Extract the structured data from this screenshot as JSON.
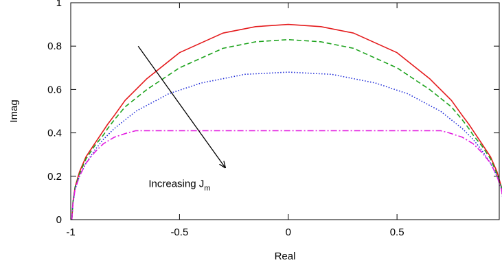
{
  "chart_data": {
    "type": "line",
    "title": "",
    "xlabel": "Real",
    "ylabel": "Imag",
    "xlim": [
      -1,
      0.97
    ],
    "ylim": [
      0,
      1
    ],
    "x_ticks": [
      -1,
      -0.5,
      0,
      0.5
    ],
    "x_tick_labels": [
      "-1",
      "-0.5",
      "0",
      "0.5"
    ],
    "y_ticks": [
      0,
      0.2,
      0.4,
      0.6,
      0.8,
      1
    ],
    "y_tick_labels": [
      "0",
      "0.2",
      "0.4",
      "0.6",
      "0.8",
      "1"
    ],
    "grid": false,
    "legend": "none",
    "series": [
      {
        "color": "#e41a1c",
        "style": "solid",
        "points": [
          [
            -0.995,
            0.0
          ],
          [
            -0.99,
            0.08
          ],
          [
            -0.98,
            0.15
          ],
          [
            -0.96,
            0.22
          ],
          [
            -0.93,
            0.29
          ],
          [
            -0.89,
            0.35
          ],
          [
            -0.85,
            0.41
          ],
          [
            -0.83,
            0.44
          ],
          [
            -0.8,
            0.48
          ],
          [
            -0.75,
            0.55
          ],
          [
            -0.65,
            0.65
          ],
          [
            -0.5,
            0.77
          ],
          [
            -0.3,
            0.86
          ],
          [
            -0.15,
            0.89
          ],
          [
            0.0,
            0.9
          ],
          [
            0.15,
            0.89
          ],
          [
            0.3,
            0.86
          ],
          [
            0.5,
            0.77
          ],
          [
            0.65,
            0.65
          ],
          [
            0.75,
            0.55
          ],
          [
            0.8,
            0.48
          ],
          [
            0.83,
            0.44
          ],
          [
            0.85,
            0.41
          ],
          [
            0.89,
            0.35
          ],
          [
            0.93,
            0.29
          ],
          [
            0.96,
            0.22
          ],
          [
            0.98,
            0.15
          ],
          [
            0.99,
            0.08
          ],
          [
            0.995,
            0.0
          ]
        ]
      },
      {
        "color": "#1da31d",
        "style": "dashed",
        "points": [
          [
            -0.995,
            0.0
          ],
          [
            -0.99,
            0.08
          ],
          [
            -0.98,
            0.15
          ],
          [
            -0.96,
            0.21
          ],
          [
            -0.93,
            0.28
          ],
          [
            -0.89,
            0.34
          ],
          [
            -0.85,
            0.39
          ],
          [
            -0.83,
            0.42
          ],
          [
            -0.8,
            0.46
          ],
          [
            -0.75,
            0.52
          ],
          [
            -0.65,
            0.6
          ],
          [
            -0.5,
            0.7
          ],
          [
            -0.3,
            0.79
          ],
          [
            -0.15,
            0.82
          ],
          [
            0.0,
            0.83
          ],
          [
            0.15,
            0.82
          ],
          [
            0.3,
            0.79
          ],
          [
            0.5,
            0.7
          ],
          [
            0.65,
            0.6
          ],
          [
            0.75,
            0.52
          ],
          [
            0.8,
            0.46
          ],
          [
            0.83,
            0.42
          ],
          [
            0.85,
            0.39
          ],
          [
            0.89,
            0.34
          ],
          [
            0.93,
            0.28
          ],
          [
            0.96,
            0.21
          ],
          [
            0.98,
            0.15
          ],
          [
            0.99,
            0.08
          ],
          [
            0.995,
            0.0
          ]
        ]
      },
      {
        "color": "#1e2bd8",
        "style": "dotted",
        "points": [
          [
            -0.995,
            0.0
          ],
          [
            -0.99,
            0.07
          ],
          [
            -0.98,
            0.14
          ],
          [
            -0.96,
            0.2
          ],
          [
            -0.93,
            0.26
          ],
          [
            -0.89,
            0.32
          ],
          [
            -0.85,
            0.37
          ],
          [
            -0.8,
            0.42
          ],
          [
            -0.7,
            0.5
          ],
          [
            -0.55,
            0.58
          ],
          [
            -0.4,
            0.63
          ],
          [
            -0.2,
            0.67
          ],
          [
            0.0,
            0.68
          ],
          [
            0.2,
            0.67
          ],
          [
            0.4,
            0.63
          ],
          [
            0.55,
            0.58
          ],
          [
            0.7,
            0.5
          ],
          [
            0.8,
            0.42
          ],
          [
            0.85,
            0.37
          ],
          [
            0.89,
            0.32
          ],
          [
            0.93,
            0.26
          ],
          [
            0.96,
            0.2
          ],
          [
            0.98,
            0.14
          ],
          [
            0.99,
            0.07
          ],
          [
            0.995,
            0.0
          ]
        ]
      },
      {
        "color": "#e21ce0",
        "style": "dashdot",
        "points": [
          [
            -0.995,
            0.0
          ],
          [
            -0.99,
            0.07
          ],
          [
            -0.98,
            0.14
          ],
          [
            -0.96,
            0.2
          ],
          [
            -0.93,
            0.26
          ],
          [
            -0.89,
            0.31
          ],
          [
            -0.85,
            0.35
          ],
          [
            -0.8,
            0.38
          ],
          [
            -0.74,
            0.4
          ],
          [
            -0.7,
            0.41
          ],
          [
            0.0,
            0.41
          ],
          [
            0.7,
            0.41
          ],
          [
            0.74,
            0.4
          ],
          [
            0.8,
            0.38
          ],
          [
            0.85,
            0.35
          ],
          [
            0.89,
            0.31
          ],
          [
            0.93,
            0.26
          ],
          [
            0.96,
            0.2
          ],
          [
            0.98,
            0.14
          ],
          [
            0.99,
            0.07
          ],
          [
            0.995,
            0.0
          ]
        ]
      }
    ],
    "annotation": {
      "text_main": "Increasing J",
      "text_sub": "m",
      "arrow_from": [
        -0.69,
        0.8
      ],
      "arrow_to": [
        -0.29,
        0.24
      ],
      "text_anchor": [
        -0.5,
        0.15
      ]
    }
  }
}
